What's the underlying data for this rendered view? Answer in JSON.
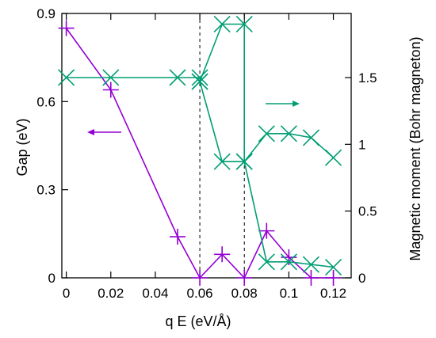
{
  "chart_data": {
    "type": "line",
    "xlabel": "q E (eV/Å)",
    "ylabel_left": "Gap (eV)",
    "ylabel_right": "Magnetic moment (Bohr magneton)",
    "xlim": [
      -0.002,
      0.128
    ],
    "ylim_left": [
      0,
      0.9
    ],
    "ylim_right": [
      0,
      1.98
    ],
    "x_ticks": [
      0,
      0.02,
      0.04,
      0.06,
      0.08,
      0.1,
      0.12
    ],
    "x_tick_labels": [
      "0",
      "0.02",
      "0.04",
      "0.06",
      "0.08",
      "0.1",
      "0.12"
    ],
    "y_left_ticks": [
      0,
      0.3,
      0.6,
      0.9
    ],
    "y_left_tick_labels": [
      "0",
      "0.3",
      "0.6",
      "0.9"
    ],
    "y_right_ticks": [
      0,
      0.5,
      1,
      1.5
    ],
    "y_right_tick_labels": [
      "0",
      "0.5",
      "1",
      "1.5"
    ],
    "vlines": [
      0.06,
      0.08
    ],
    "grid": false,
    "series": [
      {
        "axis": "left",
        "marker": "plus",
        "color": "#9400d3",
        "x": [
          0,
          0.02,
          0.05,
          0.06,
          0.07,
          0.08,
          0.09,
          0.1,
          0.11,
          0.12
        ],
        "y": [
          0.85,
          0.64,
          0.14,
          0.0,
          0.08,
          0.0,
          0.16,
          0.07,
          0.0,
          0.0
        ]
      },
      {
        "axis": "right",
        "marker": "x",
        "color": "#009e73",
        "x": [
          0,
          0.02,
          0.05,
          0.06,
          0.06,
          0.07,
          0.08,
          0.08,
          0.09,
          0.1,
          0.11,
          0.12
        ],
        "y": [
          1.5,
          1.5,
          1.5,
          1.5,
          1.47,
          1.9,
          1.9,
          0.87,
          1.08,
          1.08,
          1.05,
          0.9
        ]
      },
      {
        "axis": "right",
        "marker": "x",
        "color": "#009e73",
        "x": [
          0.06,
          0.07,
          0.08,
          0.09,
          0.1,
          0.11,
          0.12
        ],
        "y": [
          1.47,
          0.87,
          0.87,
          0.12,
          0.12,
          0.1,
          0.08
        ]
      }
    ],
    "annotations": [
      {
        "type": "arrow",
        "direction": "left",
        "color": "#9400d3"
      },
      {
        "type": "arrow",
        "direction": "right",
        "color": "#009e73"
      }
    ]
  }
}
